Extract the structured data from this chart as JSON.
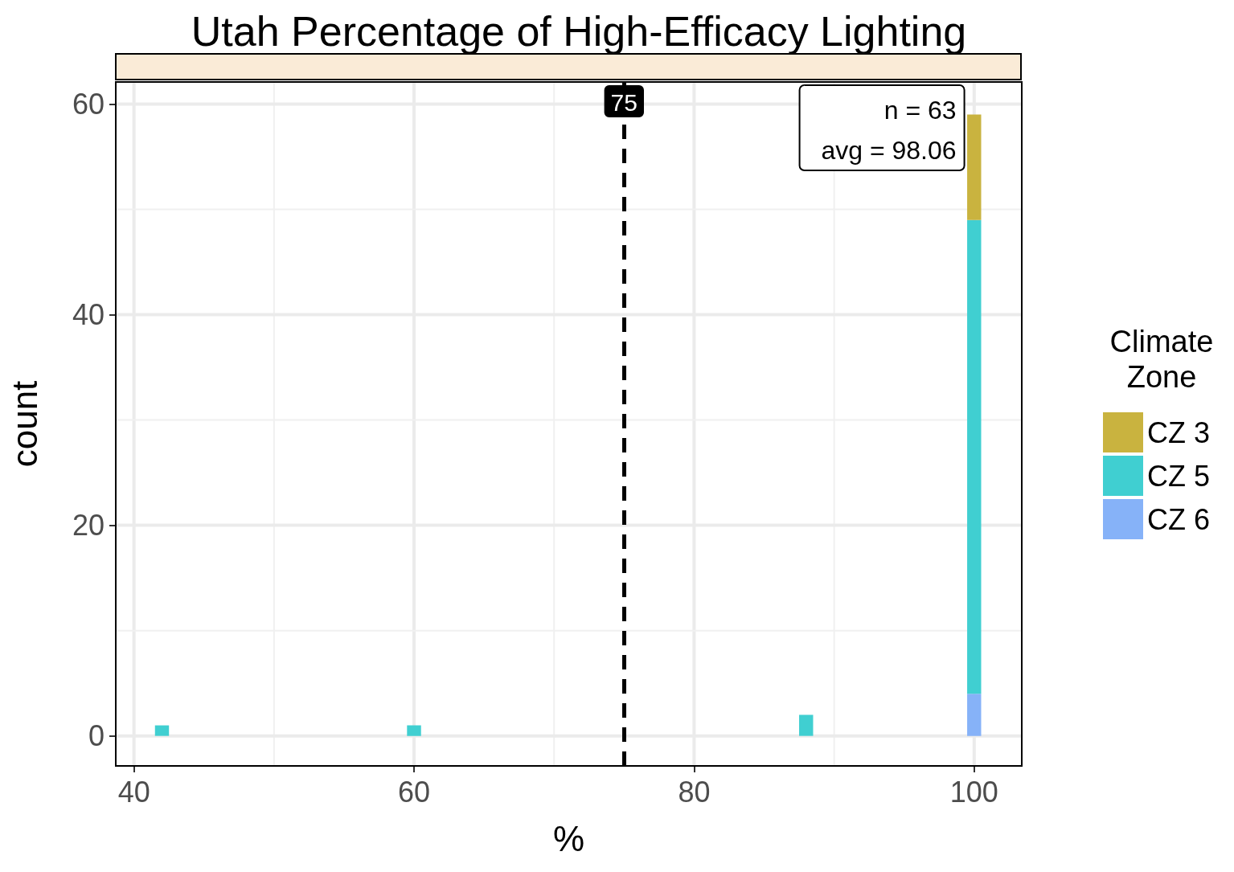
{
  "chart_data": {
    "type": "bar",
    "title": "Utah Percentage of High-Efficacy Lighting",
    "xlabel": "%",
    "ylabel": "count",
    "legend_title": "Climate Zone",
    "x": [
      42,
      60,
      88,
      100
    ],
    "stacked": true,
    "series": [
      {
        "name": "CZ 6",
        "color": "#86b2f8",
        "values": [
          0,
          0,
          0,
          4
        ]
      },
      {
        "name": "CZ 5",
        "color": "#40cfd1",
        "values": [
          1,
          1,
          2,
          45
        ]
      },
      {
        "name": "CZ 3",
        "color": "#c9b33f",
        "values": [
          0,
          0,
          0,
          10
        ]
      }
    ],
    "xlim": [
      38.7,
      103.4
    ],
    "xticks": [
      40,
      60,
      80,
      100
    ],
    "ylim": [
      -2.85,
      62.1
    ],
    "yticks": [
      0,
      20,
      40,
      60
    ],
    "ref_lines": [
      {
        "axis": "x",
        "value": 75,
        "label": "75",
        "line_style": "dashed",
        "color": "#000000"
      }
    ],
    "annotations": [
      "n = 63",
      "avg = 98.06"
    ],
    "grid": true,
    "legend": "right"
  }
}
